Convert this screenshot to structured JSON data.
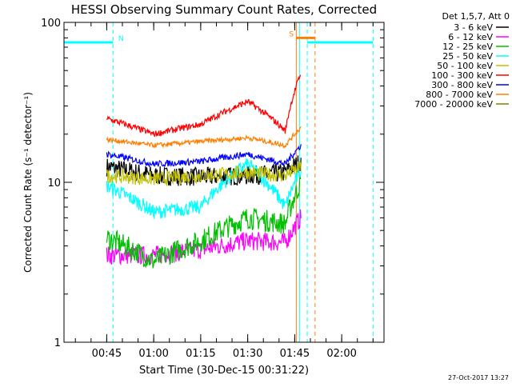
{
  "chart_data": {
    "type": "line",
    "title": "HESSI Observing Summary Count Rates, Corrected",
    "xlabel": "Start Time (30-Dec-15 00:31:22)",
    "ylabel": "Corrected Count Rate (s⁻¹ detector⁻¹)",
    "y_scale": "log",
    "ylim": [
      1,
      100
    ],
    "y_ticks": [
      1,
      10,
      100
    ],
    "y_tick_labels": [
      "1",
      "10",
      "100"
    ],
    "xlim": [
      "00:31:22",
      "02:13:30"
    ],
    "x_ticks": [
      "00:45",
      "01:00",
      "01:15",
      "01:30",
      "01:45",
      "02:00"
    ],
    "x_tick_labels": [
      "00:45",
      "01:00",
      "01:15",
      "01:30",
      "01:45",
      "02:00"
    ],
    "grid": false,
    "legend_position": "top-right outside",
    "legend_title": "Det 1,5,7, Att 0",
    "timestamp": "27-Oct-2017 13:27",
    "series": [
      {
        "name": "3 - 6 keV",
        "color": "#000000",
        "samples": [
          [
            "00:45:00",
            12.5
          ],
          [
            "01:00:00",
            11.0
          ],
          [
            "01:15:00",
            10.8
          ],
          [
            "01:30:00",
            11.0
          ],
          [
            "01:42:00",
            11.5
          ],
          [
            "01:47:00",
            13.5
          ]
        ]
      },
      {
        "name": "6 - 12 keV",
        "color": "#ff00ff",
        "samples": [
          [
            "00:45:00",
            3.5
          ],
          [
            "01:00:00",
            3.5
          ],
          [
            "01:15:00",
            3.8
          ],
          [
            "01:30:00",
            4.3
          ],
          [
            "01:42:00",
            4.2
          ],
          [
            "01:47:00",
            6.0
          ]
        ]
      },
      {
        "name": "12 - 25 keV",
        "color": "#00c000",
        "samples": [
          [
            "00:45:00",
            4.5
          ],
          [
            "01:00:00",
            3.2
          ],
          [
            "01:15:00",
            4.3
          ],
          [
            "01:30:00",
            6.0
          ],
          [
            "01:42:00",
            5.5
          ],
          [
            "01:47:00",
            10.0
          ]
        ]
      },
      {
        "name": "25 - 50 keV",
        "color": "#00ffff",
        "samples": [
          [
            "00:45:00",
            9.5
          ],
          [
            "01:00:00",
            6.5
          ],
          [
            "01:15:00",
            7.0
          ],
          [
            "01:30:00",
            13.0
          ],
          [
            "01:42:00",
            7.0
          ],
          [
            "01:47:00",
            12.0
          ]
        ]
      },
      {
        "name": "50 - 100 keV",
        "color": "#c0c000",
        "samples": [
          [
            "00:45:00",
            11.0
          ],
          [
            "01:00:00",
            10.5
          ],
          [
            "01:15:00",
            11.0
          ],
          [
            "01:30:00",
            11.5
          ],
          [
            "01:42:00",
            11.0
          ],
          [
            "01:47:00",
            12.5
          ]
        ]
      },
      {
        "name": "100 - 300 keV",
        "color": "#ff0000",
        "samples": [
          [
            "00:45:00",
            25.0
          ],
          [
            "01:00:00",
            20.0
          ],
          [
            "01:15:00",
            23.0
          ],
          [
            "01:30:00",
            32.0
          ],
          [
            "01:42:00",
            21.0
          ],
          [
            "01:47:00",
            48.0
          ]
        ]
      },
      {
        "name": "300 - 800 keV",
        "color": "#0000ff",
        "samples": [
          [
            "00:45:00",
            15.0
          ],
          [
            "01:00:00",
            13.0
          ],
          [
            "01:15:00",
            13.5
          ],
          [
            "01:30:00",
            15.0
          ],
          [
            "01:42:00",
            13.0
          ],
          [
            "01:47:00",
            17.0
          ]
        ]
      },
      {
        "name": "800 - 7000 keV",
        "color": "#ff8000",
        "samples": [
          [
            "00:45:00",
            18.5
          ],
          [
            "01:00:00",
            17.0
          ],
          [
            "01:15:00",
            18.0
          ],
          [
            "01:30:00",
            19.0
          ],
          [
            "01:42:00",
            17.0
          ],
          [
            "01:47:00",
            22.0
          ]
        ]
      },
      {
        "name": "7000 - 20000 keV",
        "color": "#808000",
        "samples": []
      }
    ],
    "annotations": [
      {
        "label": "N",
        "color": "#00ffff",
        "segments": [
          [
            "00:31:22",
            "00:47:00"
          ],
          [
            "01:49:00",
            "02:10:00"
          ]
        ],
        "value": 75,
        "style": "solid bar"
      },
      {
        "label": "",
        "color": "#00ffff",
        "times": [
          "00:47:00",
          "01:49:00",
          "02:10:00"
        ],
        "style": "dashed vertical"
      },
      {
        "label": "",
        "color": "#00ffff",
        "times": [
          "01:46:30"
        ],
        "style": "solid vertical"
      },
      {
        "label": "S",
        "color": "#ff8000",
        "segments": [
          [
            "01:45:30",
            "01:51:30"
          ]
        ],
        "value": 80,
        "style": "solid bar"
      },
      {
        "label": "",
        "color": "#ff8000",
        "times": [
          "01:45:30"
        ],
        "style": "solid vertical"
      },
      {
        "label": "",
        "color": "#ff8000",
        "times": [
          "01:51:30"
        ],
        "style": "dashed vertical"
      }
    ]
  }
}
